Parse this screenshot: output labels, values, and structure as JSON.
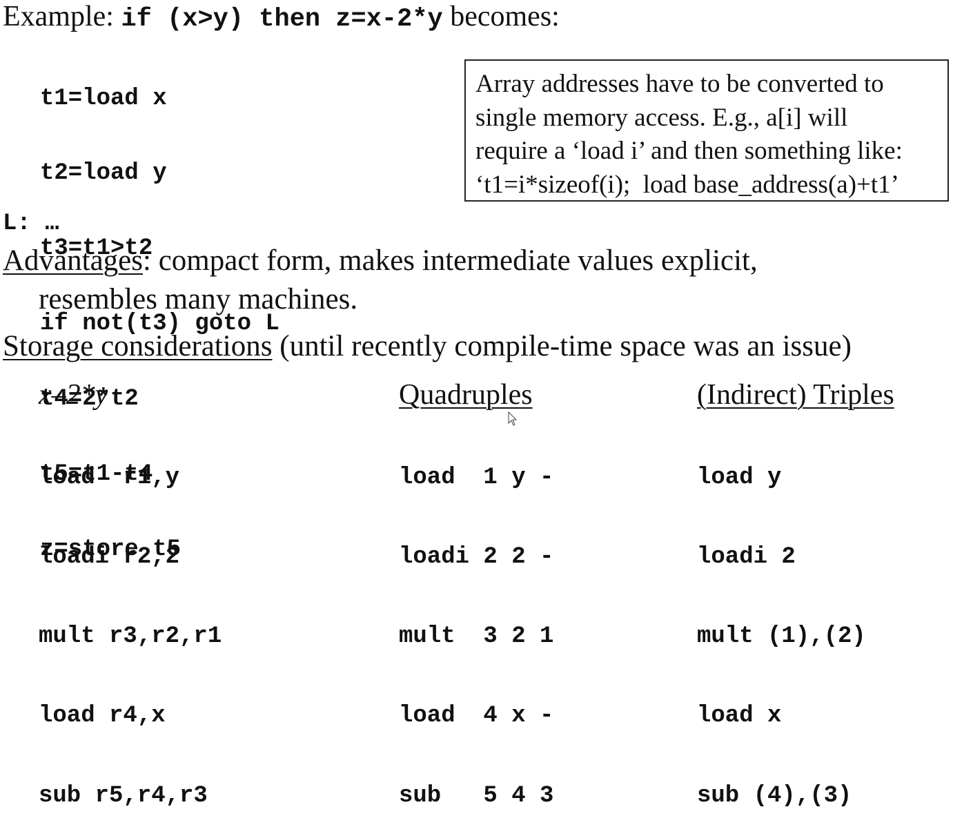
{
  "example": {
    "prefix": "Example: ",
    "code": "if (x>y) then z=x-2*y",
    "suffix": " becomes:"
  },
  "code_lines": [
    "t1=load x",
    "t2=load y",
    "t3=t1>t2",
    "if not(t3) goto L",
    "t4=2*t2",
    "t5=t1-t4",
    "z=store t5"
  ],
  "label_line": "L: …",
  "callout_lines": [
    "Array addresses have to be converted to",
    "single memory access. E.g., a[i] will",
    "require a ‘load i’ and then something like:",
    "‘t1=i*sizeof(i);  load base_address(a)+t1’"
  ],
  "advantages": {
    "label": "Advantages",
    "text": ": compact form, makes intermediate values explicit,",
    "continuation": "resembles many machines."
  },
  "storage": {
    "label": "Storage considerations",
    "text": " (until recently compile-time space was an issue)"
  },
  "columns": [
    {
      "heading": "x–2*y",
      "lines": [
        "load  r1,y",
        "loadi r2,2",
        "mult r3,r2,r1",
        "load r4,x",
        "sub r5,r4,r3"
      ]
    },
    {
      "heading": "Quadruples",
      "lines": [
        "load  1 y -",
        "loadi 2 2 -",
        "mult  3 2 1",
        "load  4 x -",
        "sub   5 4 3"
      ]
    },
    {
      "heading": "(Indirect) Triples",
      "lines": [
        "load y",
        "loadi 2",
        "mult (1),(2)",
        "load x",
        "sub (4),(3)"
      ]
    }
  ]
}
